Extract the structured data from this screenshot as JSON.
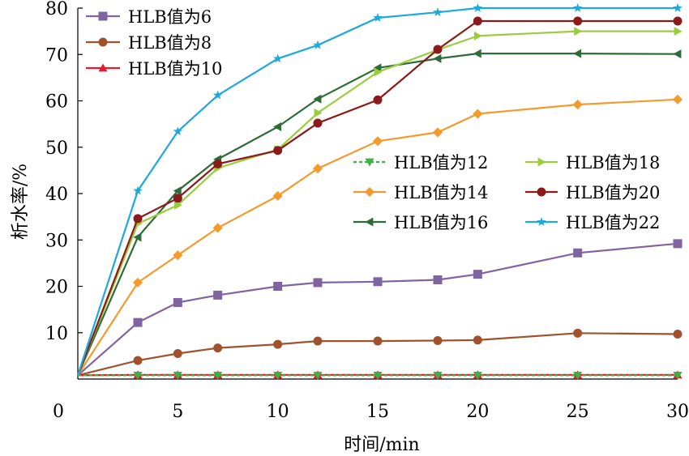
{
  "chart_data": {
    "type": "line",
    "xlabel": "时间/min",
    "ylabel": "析水率/%",
    "xlim": [
      0,
      30
    ],
    "ylim": [
      0,
      80
    ],
    "x_origin_label": "0",
    "xticks": [
      5,
      10,
      15,
      20,
      25,
      30
    ],
    "yticks": [
      10,
      20,
      30,
      40,
      50,
      60,
      70,
      80
    ],
    "grid": false,
    "legend_placement": "top-left and middle-right",
    "series": [
      {
        "name": "HLB值为6",
        "color": "#8064a2",
        "marker": "square",
        "dash": "",
        "x": [
          0,
          3,
          5,
          7,
          10,
          12,
          15,
          18,
          20,
          25,
          30
        ],
        "y": [
          0.8,
          12.2,
          16.5,
          18.1,
          20.0,
          20.8,
          21.0,
          21.4,
          22.6,
          27.2,
          29.2
        ]
      },
      {
        "name": "HLB值为8",
        "color": "#a0522d",
        "marker": "circle",
        "dash": "",
        "x": [
          0,
          3,
          5,
          7,
          10,
          12,
          15,
          18,
          20,
          25,
          30
        ],
        "y": [
          0.8,
          4.0,
          5.5,
          6.7,
          7.5,
          8.2,
          8.2,
          8.3,
          8.4,
          9.9,
          9.7
        ]
      },
      {
        "name": "HLB值为10",
        "color": "#e8192c",
        "marker": "triangle-up",
        "dash": "",
        "x": [
          0,
          3,
          5,
          7,
          10,
          12,
          15,
          18,
          20,
          25,
          30
        ],
        "y": [
          0.8,
          0.9,
          0.9,
          0.9,
          0.9,
          0.9,
          0.9,
          0.9,
          0.9,
          0.9,
          0.9
        ]
      },
      {
        "name": "HLB值为12",
        "color": "#3cb044",
        "marker": "triangle-down",
        "dash": "4,3",
        "x": [
          0,
          3,
          5,
          7,
          10,
          12,
          15,
          18,
          20,
          25,
          30
        ],
        "y": [
          0.8,
          0.8,
          0.8,
          0.8,
          0.8,
          0.8,
          0.8,
          0.8,
          0.8,
          0.8,
          0.8
        ]
      },
      {
        "name": "HLB值为14",
        "color": "#f39a2c",
        "marker": "diamond",
        "dash": "",
        "x": [
          0,
          3,
          5,
          7,
          10,
          12,
          15,
          18,
          20,
          25,
          30
        ],
        "y": [
          0.8,
          20.8,
          26.7,
          32.6,
          39.5,
          45.4,
          51.3,
          53.2,
          57.2,
          59.2,
          60.3
        ]
      },
      {
        "name": "HLB值为16",
        "color": "#2e6b36",
        "marker": "triangle-left",
        "dash": "",
        "x": [
          0,
          3,
          5,
          7,
          10,
          12,
          15,
          18,
          20,
          25,
          30
        ],
        "y": [
          0.8,
          30.6,
          40.6,
          47.4,
          54.4,
          60.4,
          67.1,
          69.1,
          70.2,
          70.2,
          70.1
        ]
      },
      {
        "name": "HLB值为18",
        "color": "#9acd3c",
        "marker": "triangle-right",
        "dash": "",
        "x": [
          0,
          3,
          5,
          7,
          10,
          12,
          15,
          18,
          20,
          25,
          30
        ],
        "y": [
          0.8,
          33.5,
          37.5,
          45.5,
          49.5,
          57.4,
          66.2,
          71.0,
          74.0,
          75.0,
          75.0
        ]
      },
      {
        "name": "HLB值为20",
        "color": "#8b1a1a",
        "marker": "circle",
        "dash": "",
        "x": [
          0,
          3,
          5,
          7,
          10,
          12,
          15,
          18,
          20,
          25,
          30
        ],
        "y": [
          0.8,
          34.6,
          39.0,
          46.4,
          49.3,
          55.2,
          60.2,
          71.1,
          77.2,
          77.2,
          77.2
        ]
      },
      {
        "name": "HLB值为22",
        "color": "#1fa8dc",
        "marker": "star",
        "dash": "",
        "x": [
          0,
          3,
          5,
          7,
          10,
          12,
          15,
          18,
          20,
          25,
          30
        ],
        "y": [
          0.8,
          40.6,
          53.4,
          61.2,
          69.1,
          72.0,
          77.9,
          79.1,
          80.0,
          80.0,
          80.0
        ]
      }
    ]
  }
}
